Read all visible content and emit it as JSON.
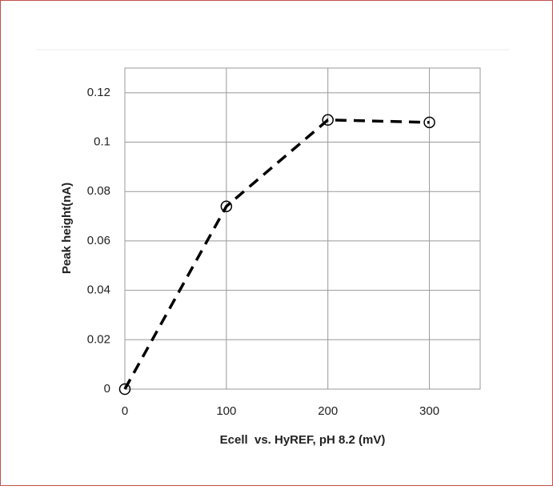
{
  "chart_data": {
    "type": "line",
    "x_label": "Ecell  vs. HyREF, pH 8.2 (mV)",
    "y_label": "Peak height(nA)",
    "x": [
      0,
      100,
      200,
      300
    ],
    "series": [
      {
        "values": [
          0,
          0.074,
          0.109,
          0.108
        ],
        "color": "#000000"
      }
    ],
    "xlim": [
      0,
      350
    ],
    "xticks": [
      0,
      100,
      200,
      300
    ],
    "ylim": [
      0,
      0.13
    ],
    "yticks": [
      0,
      0.02,
      0.04,
      0.06,
      0.08,
      0.1,
      0.12
    ],
    "grid": true
  }
}
